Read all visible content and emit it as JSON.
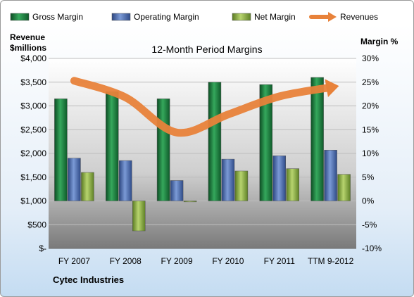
{
  "chart_data": {
    "type": "bar",
    "title": "12-Month Period Margins",
    "company": "Cytec Industries",
    "left_axis_label_line1": "Revenue",
    "left_axis_label_line2": "$millions",
    "right_axis_label": "Margin %",
    "categories": [
      "FY 2007",
      "FY 2008",
      "FY 2009",
      "FY 2010",
      "FY 2011",
      "TTM 9-2012"
    ],
    "left_ticks": [
      "$-",
      "$500",
      "$1,000",
      "$1,500",
      "$2,000",
      "$2,500",
      "$3,000",
      "$3,500",
      "$4,000"
    ],
    "right_ticks": [
      "-10%",
      "-5%",
      "0%",
      "5%",
      "10%",
      "15%",
      "20%",
      "25%",
      "30%"
    ],
    "ylim_revenue": [
      0,
      4000
    ],
    "ylim_margin": [
      -10,
      30
    ],
    "grid": true,
    "legend_position": "top",
    "series": [
      {
        "name": "Gross Margin",
        "type": "bar",
        "axis": "margin",
        "color": "#1f8040",
        "values": [
          21.5,
          23.0,
          21.5,
          25.0,
          24.5,
          26.0
        ]
      },
      {
        "name": "Operating Margin",
        "type": "bar",
        "axis": "margin",
        "color": "#4a6cb0",
        "values": [
          9.0,
          8.5,
          4.3,
          8.8,
          9.5,
          10.7
        ]
      },
      {
        "name": "Net Margin",
        "type": "bar",
        "axis": "margin",
        "color": "#8cb044",
        "values": [
          6.0,
          -6.3,
          -0.2,
          6.3,
          6.8,
          5.6
        ]
      },
      {
        "name": "Revenues",
        "type": "line",
        "axis": "revenue",
        "color": "#e8823a",
        "values": [
          3530,
          3180,
          2440,
          2820,
          3200,
          3390
        ]
      }
    ]
  }
}
